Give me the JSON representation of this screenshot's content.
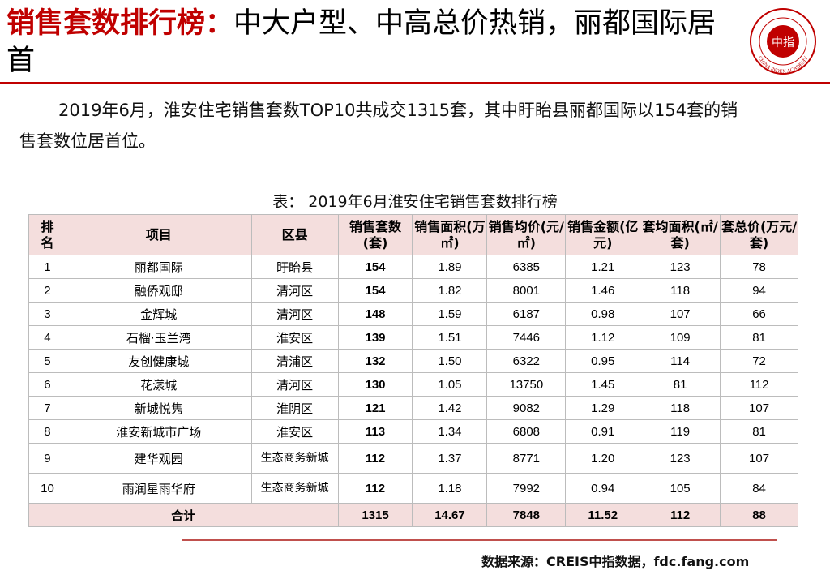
{
  "header": {
    "title_highlight": "销售套数排行榜：",
    "title_rest": "中大户型、中高总价热销，丽都国际居首",
    "logo": {
      "name": "中指院 logo",
      "text_inner": "中指",
      "text_ring": "CHINA INDEX ACADEMY",
      "color": "#c00000"
    }
  },
  "intro": {
    "line1": "2019年6月，淮安住宅销售套数TOP10共成交1315套，其中盱眙县丽都国际以154套的销",
    "line2": "售套数位居首位。"
  },
  "table": {
    "caption": "表： 2019年6月淮安住宅销售套数排行榜",
    "headers": {
      "rank": "排名",
      "project": "项目",
      "district": "区县",
      "units": "销售套数(套)",
      "area": "销售面积(万㎡)",
      "price": "销售均价(元/㎡)",
      "amount": "销售金额(亿元)",
      "avg_area": "套均面积(㎡/套)",
      "avg_total": "套总价(万元/套)"
    },
    "rows": [
      {
        "rank": "1",
        "project": "丽都国际",
        "district": "盱眙县",
        "units": "154",
        "area": "1.89",
        "price": "6385",
        "amount": "1.21",
        "avg_area": "123",
        "avg_total": "78"
      },
      {
        "rank": "2",
        "project": "融侨观邸",
        "district": "清河区",
        "units": "154",
        "area": "1.82",
        "price": "8001",
        "amount": "1.46",
        "avg_area": "118",
        "avg_total": "94"
      },
      {
        "rank": "3",
        "project": "金辉城",
        "district": "清河区",
        "units": "148",
        "area": "1.59",
        "price": "6187",
        "amount": "0.98",
        "avg_area": "107",
        "avg_total": "66"
      },
      {
        "rank": "4",
        "project": "石榴·玉兰湾",
        "district": "淮安区",
        "units": "139",
        "area": "1.51",
        "price": "7446",
        "amount": "1.12",
        "avg_area": "109",
        "avg_total": "81"
      },
      {
        "rank": "5",
        "project": "友创健康城",
        "district": "清浦区",
        "units": "132",
        "area": "1.50",
        "price": "6322",
        "amount": "0.95",
        "avg_area": "114",
        "avg_total": "72"
      },
      {
        "rank": "6",
        "project": "花漾城",
        "district": "清河区",
        "units": "130",
        "area": "1.05",
        "price": "13750",
        "amount": "1.45",
        "avg_area": "81",
        "avg_total": "112"
      },
      {
        "rank": "7",
        "project": "新城悦隽",
        "district": "淮阴区",
        "units": "121",
        "area": "1.42",
        "price": "9082",
        "amount": "1.29",
        "avg_area": "118",
        "avg_total": "107"
      },
      {
        "rank": "8",
        "project": "淮安新城市广场",
        "district": "淮安区",
        "units": "113",
        "area": "1.34",
        "price": "6808",
        "amount": "0.91",
        "avg_area": "119",
        "avg_total": "81"
      },
      {
        "rank": "9",
        "project": "建华观园",
        "district": "生态商务新城",
        "units": "112",
        "area": "1.37",
        "price": "8771",
        "amount": "1.20",
        "avg_area": "123",
        "avg_total": "107"
      },
      {
        "rank": "10",
        "project": "雨润星雨华府",
        "district": "生态商务新城",
        "units": "112",
        "area": "1.18",
        "price": "7992",
        "amount": "0.94",
        "avg_area": "105",
        "avg_total": "84"
      }
    ],
    "total": {
      "label": "合计",
      "units": "1315",
      "area": "14.67",
      "price": "7848",
      "amount": "11.52",
      "avg_area": "112",
      "avg_total": "88"
    }
  },
  "source": "数据来源：CREIS中指数据，fdc.fang.com",
  "colors": {
    "accent": "#c00000",
    "header_fill": "#f4dedd",
    "bottom_rule": "#c0504d"
  }
}
